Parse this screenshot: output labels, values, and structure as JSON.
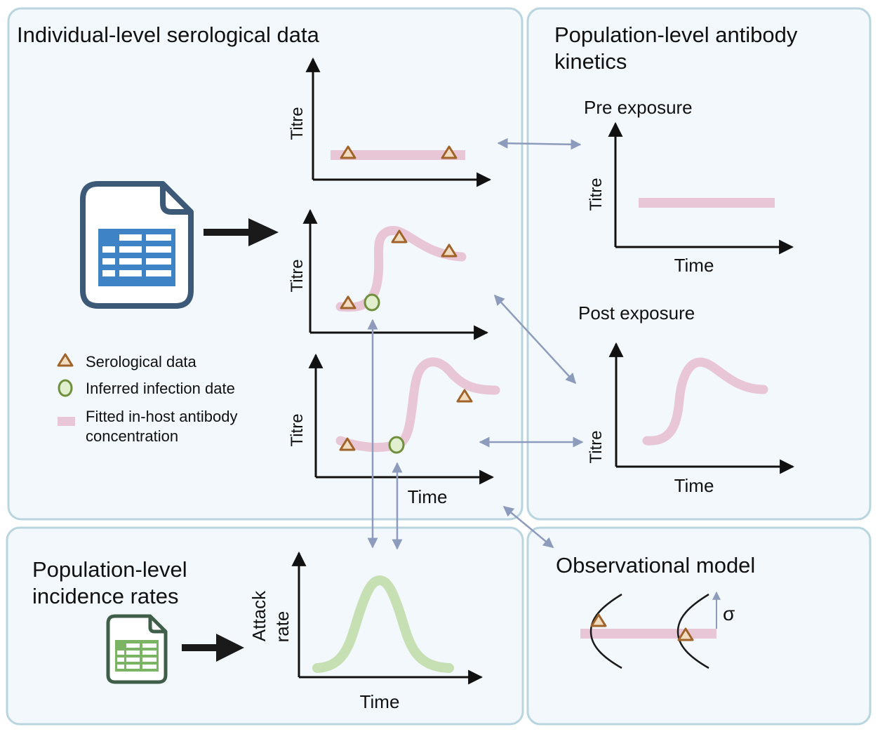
{
  "panels": {
    "individual": {
      "title": "Individual-level serological data"
    },
    "population_kinetics": {
      "title_line1": "Population-level antibody",
      "title_line2": "kinetics"
    },
    "incidence": {
      "title_line1": "Population-level",
      "title_line2": "incidence rates"
    },
    "observational": {
      "title": "Observational model"
    }
  },
  "axes": {
    "titre": "Titre",
    "time": "Time",
    "attack_line1": "Attack",
    "attack_line2": "rate"
  },
  "kinetics": {
    "pre": "Pre exposure",
    "post": "Post exposure"
  },
  "legend": {
    "serological": "Serological data",
    "inferred": "Inferred infection date",
    "fitted_line1": "Fitted in-host antibody",
    "fitted_line2": "concentration"
  },
  "observational": {
    "sigma": "σ"
  },
  "colors": {
    "panel_border": "#b9d5df",
    "panel_fill": "#f3f8fc",
    "curve_pink": "#e8c6d5",
    "curve_green": "#c6e0b4",
    "triangle": "#a0632a",
    "triangle_fill": "#f2dcc0",
    "circle": "#6f8f3c",
    "circle_fill": "#e1efcf",
    "arrow_link": "#8d9bbc",
    "file_blue": "#3c5a78",
    "grid_blue": "#3d83c6",
    "file_green": "#3f5e4a",
    "grid_green": "#7cb466"
  },
  "icons": [
    "spreadsheet-file-icon",
    "spreadsheet-file-icon-green",
    "arrow-right-icon"
  ]
}
